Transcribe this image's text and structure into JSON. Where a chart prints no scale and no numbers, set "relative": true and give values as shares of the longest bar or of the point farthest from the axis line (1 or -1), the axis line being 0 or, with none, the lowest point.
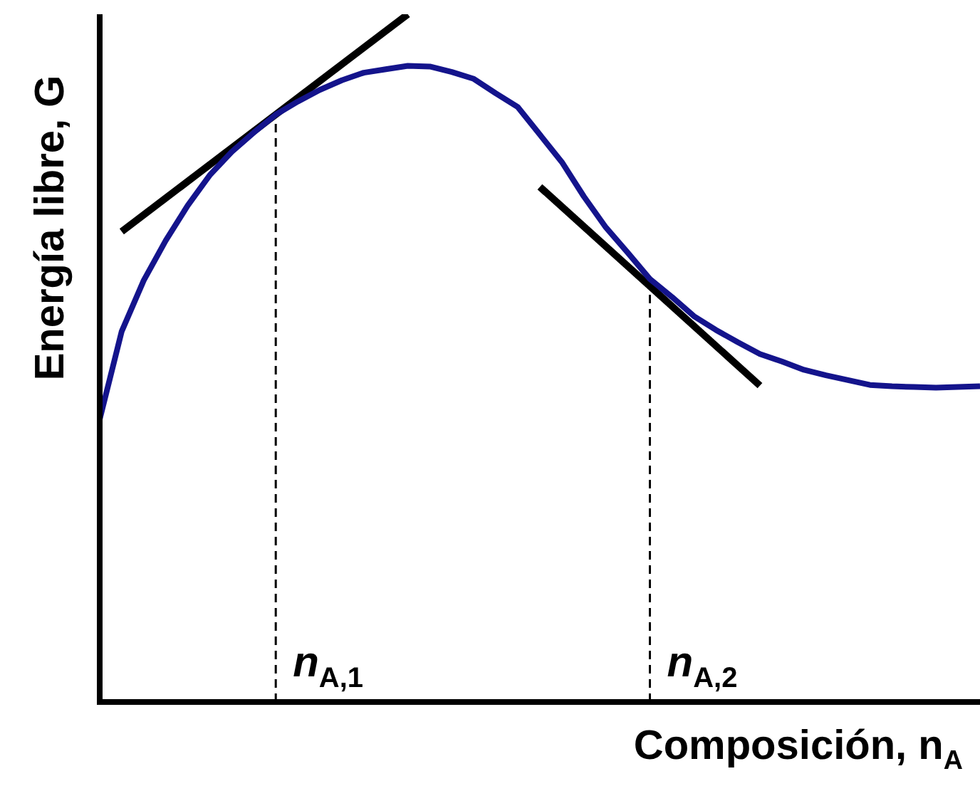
{
  "chart_data": {
    "type": "line",
    "relative": true,
    "xlabel": "Composición, n$_{A}$",
    "ylabel": "Energía libre, G",
    "marker": "none",
    "line_style": "solid",
    "categories": [
      null,
      null,
      null,
      null,
      null,
      null,
      null,
      null,
      null,
      null,
      null,
      null,
      null,
      null,
      null,
      null,
      null,
      null,
      null,
      null,
      null,
      null,
      null,
      null,
      null,
      null,
      null,
      null,
      null,
      null,
      null,
      null,
      null,
      null,
      null,
      null,
      null,
      null,
      null,
      null,
      null
    ],
    "series": [
      {
        "color": "#14148c",
        "values": [
          0.411,
          0.539,
          0.613,
          0.671,
          0.722,
          0.766,
          0.8,
          0.828,
          0.854,
          0.873,
          0.89,
          0.904,
          0.915,
          0.92,
          0.925,
          0.924,
          0.916,
          0.906,
          0.885,
          0.865,
          0.825,
          0.785,
          0.735,
          0.69,
          0.653,
          0.615,
          0.589,
          0.561,
          0.541,
          0.523,
          0.506,
          0.495,
          0.483,
          0.475,
          0.468,
          0.461,
          0.459,
          0.458,
          0.457,
          0.458,
          0.459
        ]
      },
      {
        "color": "#000000",
        "values": [
          null,
          0.684,
          null,
          null,
          null,
          null,
          null,
          null,
          null,
          null,
          null,
          null,
          null,
          null,
          1.0,
          null,
          null,
          null,
          null,
          null,
          null,
          null,
          null,
          null,
          null,
          null,
          null,
          null,
          null,
          null,
          null,
          null,
          null,
          null,
          null,
          null,
          null,
          null,
          null,
          null,
          null
        ]
      },
      {
        "color": "#000000",
        "values": [
          null,
          null,
          null,
          null,
          null,
          null,
          null,
          null,
          null,
          null,
          null,
          null,
          null,
          null,
          null,
          null,
          null,
          null,
          null,
          null,
          0.749,
          null,
          null,
          null,
          null,
          null,
          null,
          null,
          null,
          null,
          0.46,
          null,
          null,
          null,
          null,
          null,
          null,
          null,
          null,
          null,
          null
        ]
      }
    ],
    "annotations": [
      "n$_{A,1}$",
      "n$_{A,2}$"
    ]
  }
}
